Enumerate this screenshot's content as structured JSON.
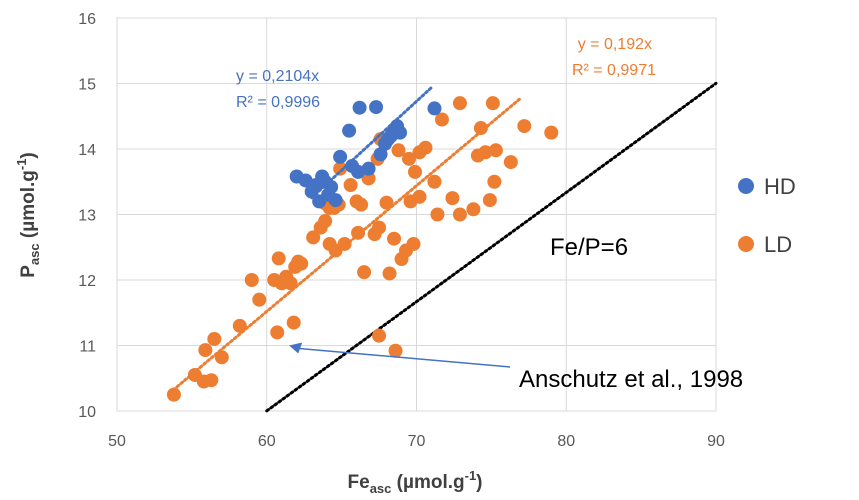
{
  "chart_data": {
    "type": "scatter",
    "xlabel": {
      "main": "Fe",
      "sub": "asc",
      "rest": " (µmol.g",
      "sup": "-1",
      "close": ")"
    },
    "ylabel": {
      "main": "P",
      "sub": "asc",
      "rest": " (µmol.g",
      "sup": "-1",
      "close": ")"
    },
    "xlim": [
      50,
      90
    ],
    "ylim": [
      10,
      16
    ],
    "xticks": [
      50,
      60,
      70,
      80,
      90
    ],
    "yticks": [
      10,
      11,
      12,
      13,
      14,
      15,
      16
    ],
    "grid": "major",
    "legend_position": "right",
    "series": [
      {
        "name": "HD",
        "color": "#4472C4",
        "trendline": {
          "slope": 0.2104,
          "x_range": [
            63,
            71
          ],
          "equation": "y = 0,2104x",
          "r2": "R² = 0,9996"
        },
        "points": [
          [
            62,
            13.58
          ],
          [
            62.6,
            13.52
          ],
          [
            63,
            13.35
          ],
          [
            63.3,
            13.45
          ],
          [
            63.5,
            13.2
          ],
          [
            63.7,
            13.58
          ],
          [
            63.9,
            13.5
          ],
          [
            64.1,
            13.3
          ],
          [
            64.3,
            13.42
          ],
          [
            64.6,
            13.22
          ],
          [
            64.9,
            13.88
          ],
          [
            65.5,
            14.28
          ],
          [
            65.7,
            13.74
          ],
          [
            66.1,
            13.65
          ],
          [
            66.2,
            14.63
          ],
          [
            66.8,
            13.7
          ],
          [
            67.3,
            14.64
          ],
          [
            67.6,
            13.92
          ],
          [
            67.9,
            14.08
          ],
          [
            68.1,
            14.15
          ],
          [
            68.3,
            14.2
          ],
          [
            68.5,
            14.28
          ],
          [
            68.7,
            14.35
          ],
          [
            68.9,
            14.25
          ],
          [
            71.2,
            14.62
          ]
        ]
      },
      {
        "name": "LD",
        "color": "#ED7D31",
        "trendline": {
          "slope": 0.192,
          "x_range": [
            53.5,
            77
          ],
          "equation": "y = 0,192x",
          "r2": "R² = 0,9971"
        },
        "points": [
          [
            53.8,
            10.25
          ],
          [
            55.2,
            10.55
          ],
          [
            55.8,
            10.45
          ],
          [
            56.3,
            10.47
          ],
          [
            55.9,
            10.93
          ],
          [
            56.5,
            11.1
          ],
          [
            57,
            10.82
          ],
          [
            58.2,
            11.3
          ],
          [
            59.5,
            11.7
          ],
          [
            59,
            12.0
          ],
          [
            60.5,
            12.0
          ],
          [
            60.8,
            12.33
          ],
          [
            61,
            11.95
          ],
          [
            61.3,
            12.05
          ],
          [
            61.6,
            11.95
          ],
          [
            61.9,
            12.2
          ],
          [
            62.1,
            12.28
          ],
          [
            61.8,
            11.35
          ],
          [
            60.7,
            11.2
          ],
          [
            62.3,
            12.25
          ],
          [
            63.1,
            12.65
          ],
          [
            63.6,
            12.8
          ],
          [
            63.9,
            12.9
          ],
          [
            64.2,
            12.55
          ],
          [
            64.6,
            12.45
          ],
          [
            63.9,
            13.17
          ],
          [
            64.2,
            13.1
          ],
          [
            64.5,
            13.1
          ],
          [
            64.8,
            13.15
          ],
          [
            64.9,
            13.7
          ],
          [
            65.2,
            12.55
          ],
          [
            65.6,
            13.45
          ],
          [
            66,
            13.2
          ],
          [
            66.1,
            12.72
          ],
          [
            66.3,
            13.15
          ],
          [
            66.5,
            12.12
          ],
          [
            66.7,
            13.62
          ],
          [
            66.8,
            13.55
          ],
          [
            67.2,
            12.7
          ],
          [
            67.5,
            12.8
          ],
          [
            67.4,
            13.85
          ],
          [
            67.6,
            14.15
          ],
          [
            67.5,
            11.15
          ],
          [
            68.0,
            13.18
          ],
          [
            68.2,
            12.1
          ],
          [
            68.5,
            12.63
          ],
          [
            68.6,
            10.92
          ],
          [
            69.0,
            12.32
          ],
          [
            69.3,
            12.45
          ],
          [
            69.6,
            13.2
          ],
          [
            69.8,
            12.55
          ],
          [
            69.9,
            13.65
          ],
          [
            70.2,
            13.27
          ],
          [
            70.2,
            13.95
          ],
          [
            70.6,
            14.02
          ],
          [
            71.2,
            13.5
          ],
          [
            71.4,
            13.0
          ],
          [
            71.7,
            14.45
          ],
          [
            72.4,
            13.25
          ],
          [
            72.9,
            14.7
          ],
          [
            72.9,
            13.0
          ],
          [
            73.8,
            13.08
          ],
          [
            74.1,
            13.9
          ],
          [
            74.3,
            14.32
          ],
          [
            74.6,
            13.95
          ],
          [
            74.9,
            13.22
          ],
          [
            75.1,
            14.7
          ],
          [
            75.2,
            13.5
          ],
          [
            75.3,
            13.98
          ],
          [
            76.3,
            13.8
          ],
          [
            77.2,
            14.35
          ],
          [
            79.0,
            14.25
          ],
          [
            68.8,
            13.98
          ],
          [
            69.5,
            13.85
          ]
        ]
      }
    ],
    "reference_line": {
      "slope": 0.1667,
      "x_range": [
        60,
        90
      ],
      "color": "#000000"
    },
    "annotations": {
      "ratio_label": "Fe/P=6",
      "source_label": "Anschutz et al., 1998",
      "arrow_target": [
        61.5,
        11.0
      ]
    }
  }
}
